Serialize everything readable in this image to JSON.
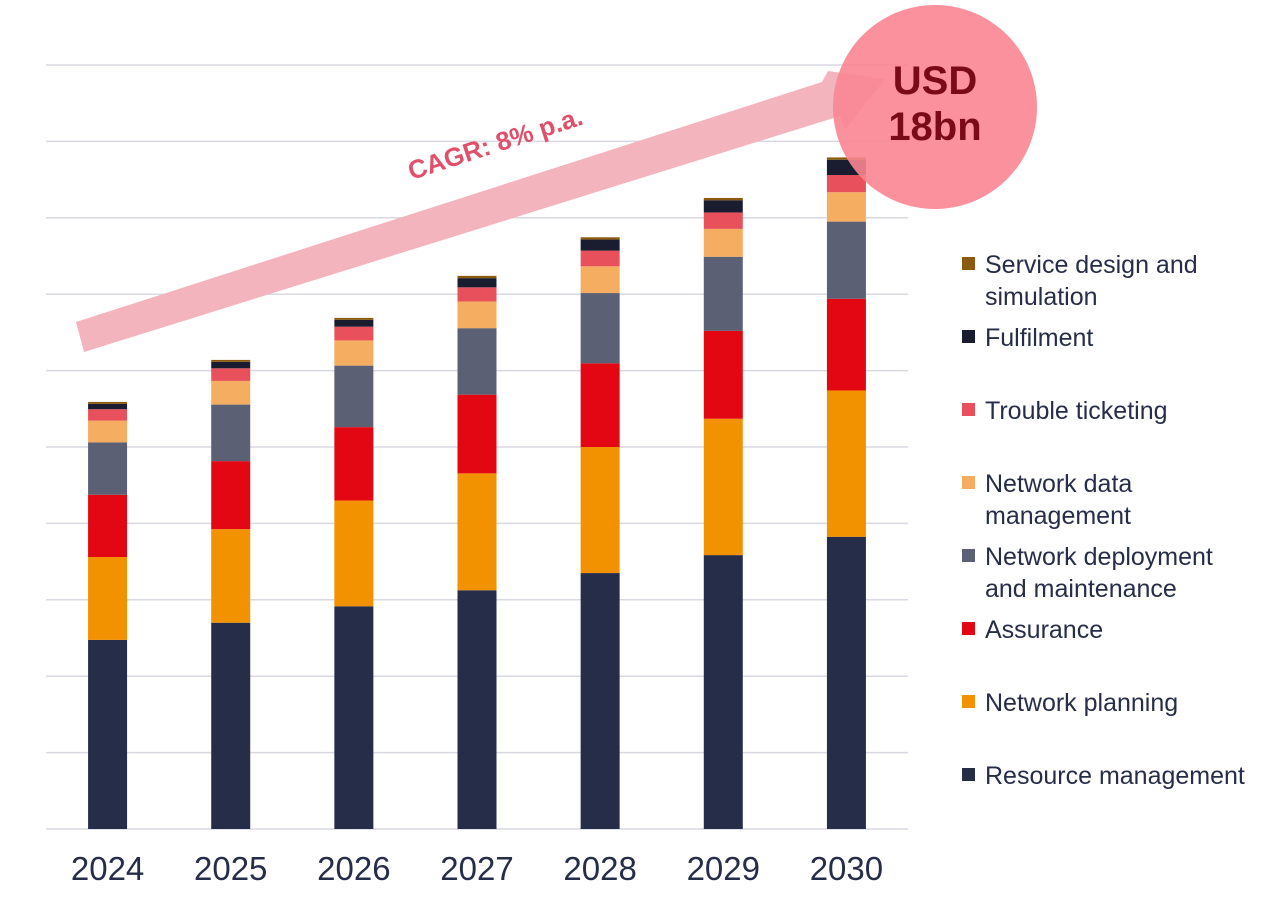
{
  "chart_data": {
    "type": "bar",
    "stacked": true,
    "categories": [
      "2024",
      "2025",
      "2026",
      "2027",
      "2028",
      "2029",
      "2030"
    ],
    "ylim": [
      0,
      20
    ],
    "grid": true,
    "y_tick_labels_shown": false,
    "legend_placement": "right",
    "series": [
      {
        "name": "Resource management",
        "color": "#262d48",
        "values": [
          4.95,
          5.4,
          5.83,
          6.25,
          6.7,
          7.17,
          7.65
        ]
      },
      {
        "name": "Network planning",
        "color": "#f39200",
        "values": [
          2.17,
          2.45,
          2.77,
          3.06,
          3.3,
          3.57,
          3.83
        ]
      },
      {
        "name": "Assurance",
        "color": "#e30613",
        "values": [
          1.63,
          1.78,
          1.92,
          2.06,
          2.19,
          2.3,
          2.4
        ]
      },
      {
        "name": "Network deployment and maintenance",
        "color": "#5b6074",
        "values": [
          1.37,
          1.48,
          1.61,
          1.74,
          1.84,
          1.94,
          2.02
        ]
      },
      {
        "name": "Network data management",
        "color": "#f4ad61",
        "values": [
          0.57,
          0.62,
          0.66,
          0.7,
          0.7,
          0.73,
          0.77
        ]
      },
      {
        "name": "Trouble ticketing",
        "color": "#e8505b",
        "values": [
          0.3,
          0.33,
          0.36,
          0.37,
          0.41,
          0.43,
          0.45
        ]
      },
      {
        "name": "Fulfilment",
        "color": "#1a1d30",
        "values": [
          0.14,
          0.17,
          0.18,
          0.24,
          0.29,
          0.32,
          0.4
        ]
      },
      {
        "name": "Service design and simulation",
        "color": "#8b5a0f",
        "values": [
          0.05,
          0.05,
          0.05,
          0.06,
          0.06,
          0.06,
          0.06
        ]
      }
    ],
    "annotations": {
      "cagr_label": "CAGR: 8% p.a.",
      "total_label": "USD\n18bn",
      "arrow_color": "#f4b4bd",
      "cagr_color": "#e0506a",
      "bubble_color": "#f98592",
      "total_color": "#7a0a17"
    }
  }
}
